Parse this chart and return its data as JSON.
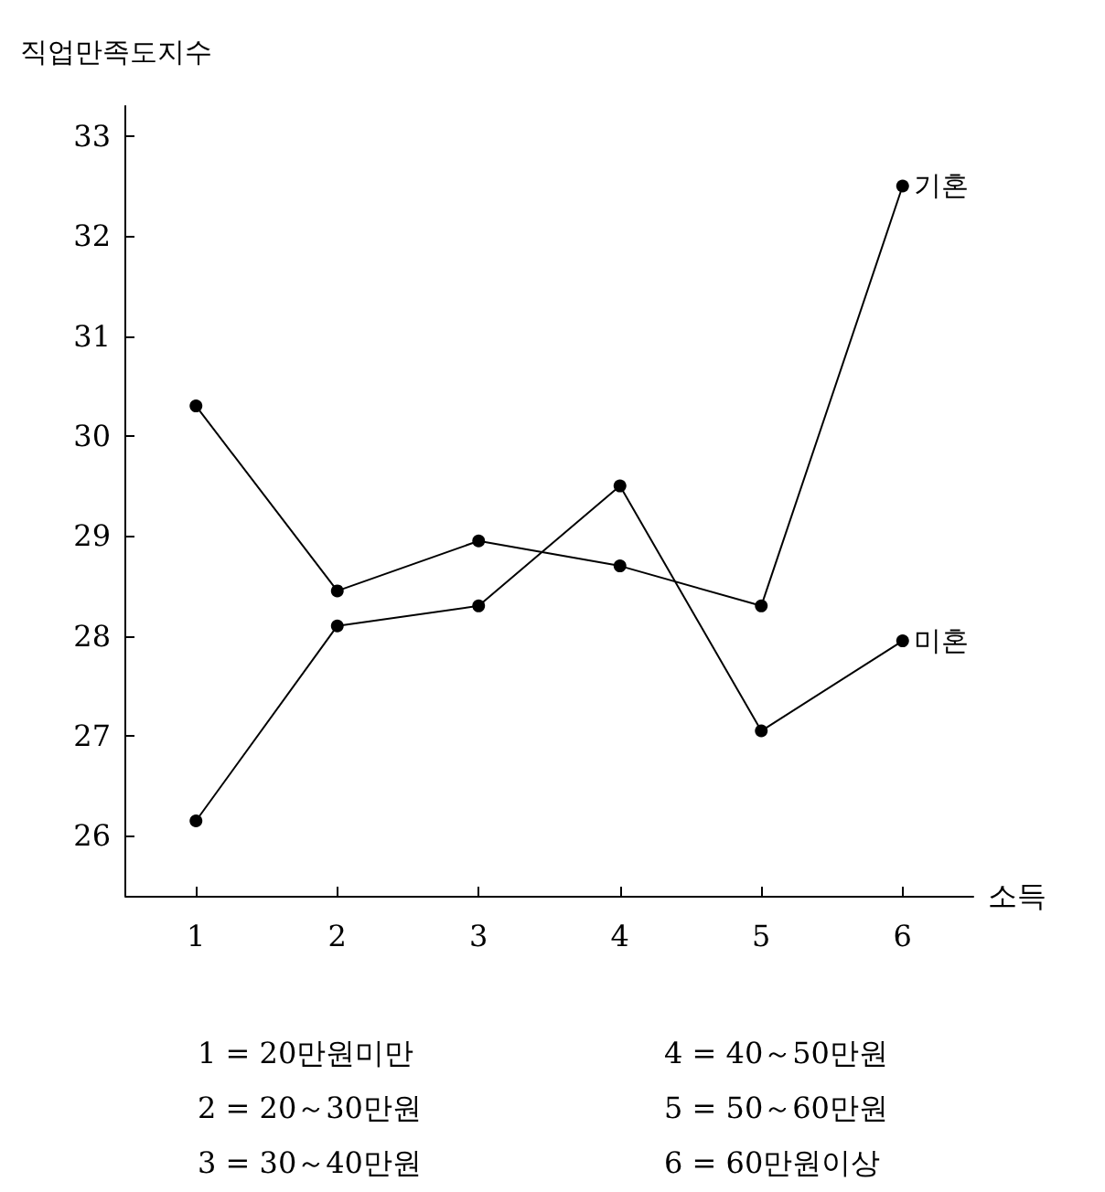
{
  "chart_data": {
    "type": "line",
    "ylabel": "직업만족도지수",
    "xlabel": "소득",
    "categories": [
      "1",
      "2",
      "3",
      "4",
      "5",
      "6"
    ],
    "series": [
      {
        "name": "기혼",
        "color": "#000000",
        "values": [
          30.3,
          28.45,
          28.95,
          28.7,
          28.3,
          32.5
        ]
      },
      {
        "name": "미혼",
        "color": "#000000",
        "values": [
          26.15,
          28.1,
          28.3,
          29.5,
          27.05,
          27.95
        ]
      }
    ],
    "ylim": [
      25.4,
      33.3
    ],
    "yticks": [
      26,
      27,
      28,
      29,
      30,
      31,
      32,
      33
    ],
    "marker": "circle",
    "line_style": "solid",
    "grid": false,
    "legend": false,
    "annotations": [
      "1 = 20만원미만",
      "2 = 20～30만원",
      "3 = 30～40만원",
      "4 = 40～50만원",
      "5 = 50～60만원",
      "6 = 60만원이상"
    ]
  }
}
